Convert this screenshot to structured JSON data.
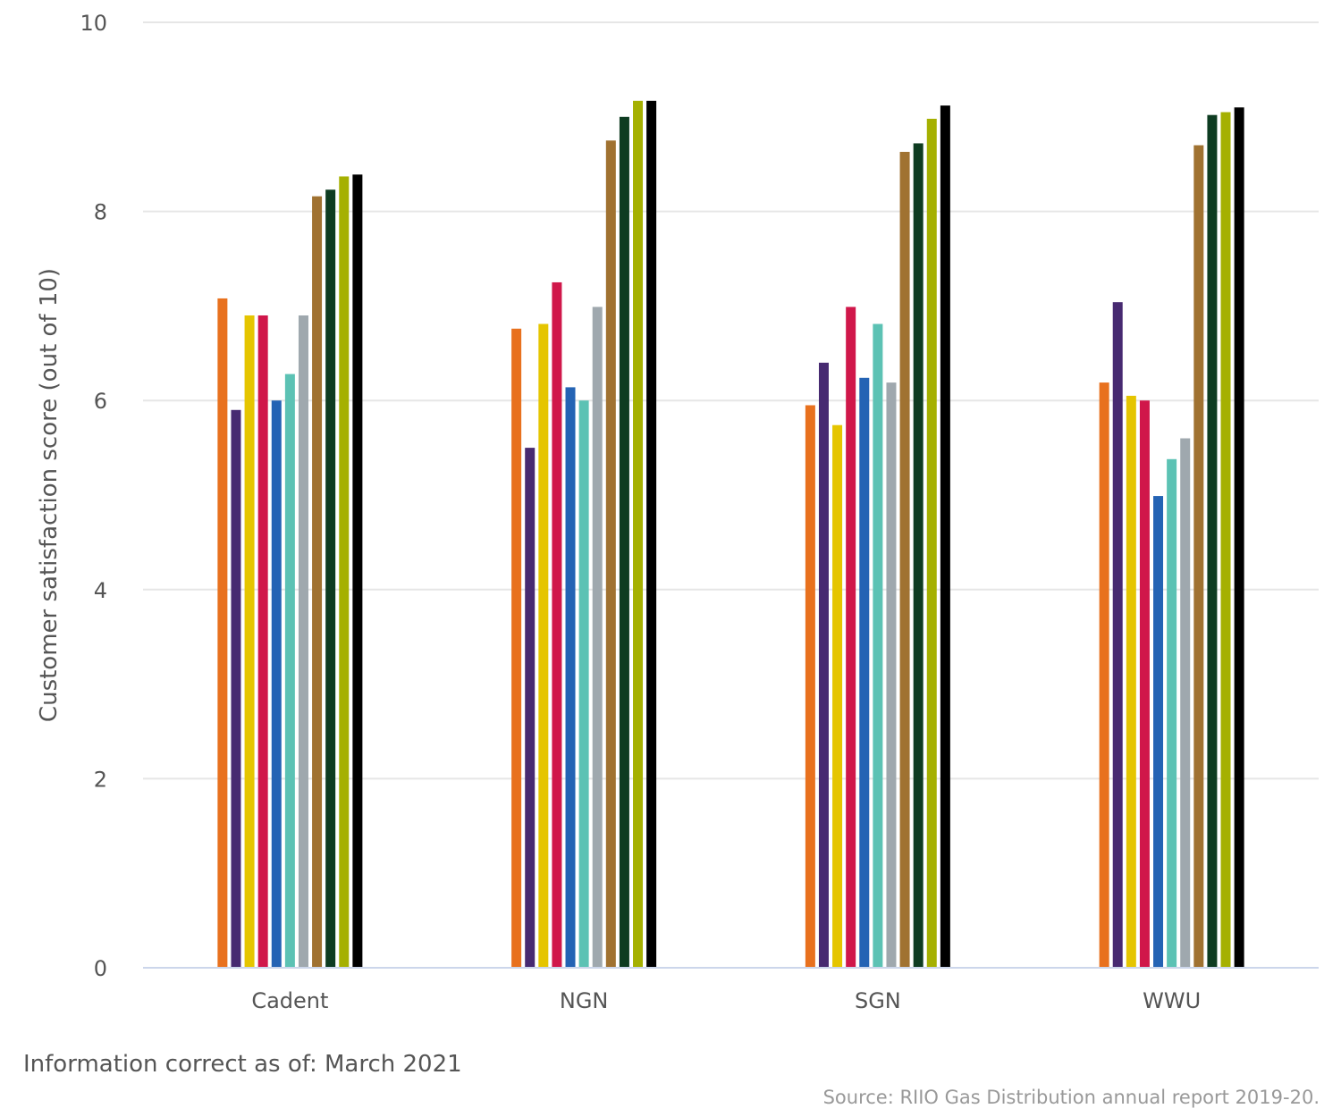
{
  "chart_data": {
    "type": "bar",
    "ylabel": "Customer satisfaction score (out of 10)",
    "ylim": [
      0,
      10
    ],
    "yticks": [
      "0",
      "2",
      "4",
      "6",
      "8",
      "10"
    ],
    "grid": true,
    "legend": "none",
    "categories": [
      "Cadent",
      "NGN",
      "SGN",
      "WWU"
    ],
    "series": [
      {
        "color": "#E8711E",
        "values": [
          7.08,
          6.76,
          5.95,
          6.19
        ]
      },
      {
        "color": "#472A71",
        "values": [
          5.9,
          5.5,
          6.4,
          7.04
        ]
      },
      {
        "color": "#E5C500",
        "values": [
          6.9,
          6.81,
          5.74,
          6.05
        ]
      },
      {
        "color": "#D0174A",
        "values": [
          6.9,
          7.25,
          6.99,
          6.0
        ]
      },
      {
        "color": "#2463B4",
        "values": [
          6.0,
          6.14,
          6.24,
          4.99
        ]
      },
      {
        "color": "#5CC2B4",
        "values": [
          6.28,
          6.0,
          6.81,
          5.38
        ]
      },
      {
        "color": "#9FA8AE",
        "values": [
          6.9,
          6.99,
          6.19,
          5.6
        ]
      },
      {
        "color": "#A07231",
        "values": [
          8.16,
          8.75,
          8.63,
          8.7
        ]
      },
      {
        "color": "#0E3C21",
        "values": [
          8.23,
          9.0,
          8.72,
          9.02
        ]
      },
      {
        "color": "#A5B001",
        "values": [
          8.37,
          9.17,
          8.98,
          9.05
        ]
      },
      {
        "color": "#000000",
        "values": [
          8.39,
          9.17,
          9.12,
          9.1
        ]
      }
    ]
  },
  "notes": {
    "info": "Information correct as of: March 2021",
    "source": "Source: RIIO Gas Distribution annual report 2019-20."
  },
  "colors": {
    "grid": "#E6E6E6",
    "baseline": "#CCD6EB",
    "text": "#555555"
  }
}
